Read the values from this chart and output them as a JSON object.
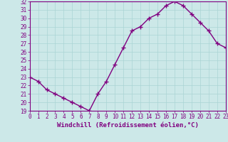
{
  "x": [
    0,
    1,
    2,
    3,
    4,
    5,
    6,
    7,
    8,
    9,
    10,
    11,
    12,
    13,
    14,
    15,
    16,
    17,
    18,
    19,
    20,
    21,
    22,
    23
  ],
  "y": [
    23.0,
    22.5,
    21.5,
    21.0,
    20.5,
    20.0,
    19.5,
    19.0,
    21.0,
    22.5,
    24.5,
    26.5,
    28.5,
    29.0,
    30.0,
    30.5,
    31.5,
    32.0,
    31.5,
    30.5,
    29.5,
    28.5,
    27.0,
    26.5
  ],
  "line_color": "#800080",
  "marker": "+",
  "marker_size": 4,
  "bg_color": "#cce8e8",
  "grid_color": "#aad4d4",
  "xlabel": "Windchill (Refroidissement éolien,°C)",
  "xlim": [
    0,
    23
  ],
  "ylim": [
    19,
    32
  ],
  "yticks": [
    19,
    20,
    21,
    22,
    23,
    24,
    25,
    26,
    27,
    28,
    29,
    30,
    31,
    32
  ],
  "xtick_labels": [
    "0",
    "1",
    "2",
    "3",
    "4",
    "5",
    "6",
    "7",
    "8",
    "9",
    "10",
    "11",
    "12",
    "13",
    "14",
    "15",
    "16",
    "17",
    "18",
    "19",
    "20",
    "21",
    "22",
    "23"
  ],
  "xlabel_fontsize": 6.5,
  "tick_fontsize": 5.5,
  "line_width": 1.0
}
